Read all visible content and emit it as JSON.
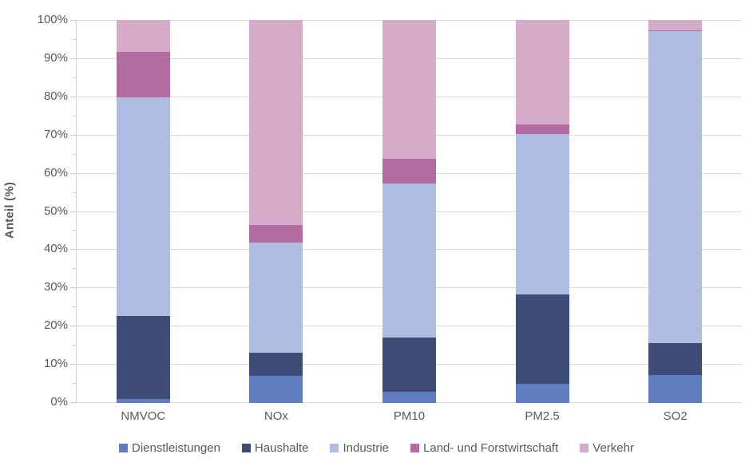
{
  "chart_data": {
    "type": "bar",
    "stacked": true,
    "percent_stacked": true,
    "title": "",
    "xlabel": "",
    "ylabel": "Anteil (%)",
    "ylim": [
      0,
      100
    ],
    "yticks": [
      "0%",
      "10%",
      "20%",
      "30%",
      "40%",
      "50%",
      "60%",
      "70%",
      "80%",
      "90%",
      "100%"
    ],
    "grid": true,
    "legend_position": "bottom",
    "categories": [
      "NMVOC",
      "NOx",
      "PM10",
      "PM2.5",
      "SO2"
    ],
    "series": [
      {
        "name": "Dienstleistungen",
        "color": "#5F7DBF",
        "values": [
          1.0,
          7.0,
          3.0,
          5.1,
          7.3
        ]
      },
      {
        "name": "Haushalte",
        "color": "#3E4C77",
        "values": [
          21.8,
          6.1,
          14.0,
          23.2,
          8.4
        ]
      },
      {
        "name": "Industrie",
        "color": "#B0BDE2",
        "values": [
          56.9,
          28.7,
          40.2,
          42.0,
          81.3
        ]
      },
      {
        "name": "Land- und Forstwirtschaft",
        "color": "#B26CA2",
        "values": [
          12.0,
          4.7,
          6.6,
          2.4,
          0.4
        ]
      },
      {
        "name": "Verkehr",
        "color": "#D6AAC9",
        "values": [
          8.3,
          53.5,
          36.2,
          27.3,
          2.6
        ]
      }
    ],
    "colors": {
      "text": "#595959",
      "gridline": "#dcdcdc",
      "axis_line": "#d2d2d2",
      "tick": "#c9c9c9",
      "background": "#ffffff"
    }
  }
}
